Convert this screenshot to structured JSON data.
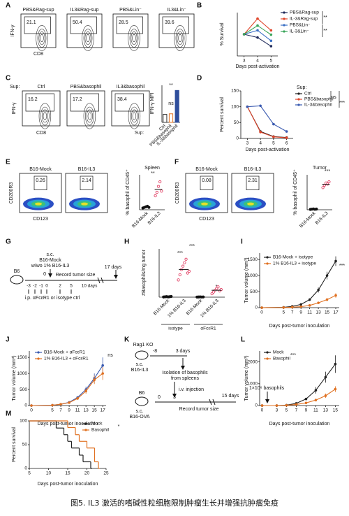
{
  "panel_letters": [
    "A",
    "B",
    "C",
    "D",
    "E",
    "F",
    "G",
    "H",
    "I",
    "J",
    "K",
    "L",
    "M"
  ],
  "flow_panels": [
    {
      "y_label": "IFN-γ",
      "x_label": "CD8",
      "plots": [
        {
          "title": "PBS&Rag-sup",
          "gate": 21.1
        },
        {
          "title": "IL3&Rag-sup",
          "gate": 50.4
        },
        {
          "title": "PBS&Lin⁻",
          "gate": 28.5
        },
        {
          "title": "IL3&Lin⁻",
          "gate": 39.6
        }
      ]
    },
    {
      "label": "Sup:",
      "y_label": "IFN-γ",
      "x_label": "CD8",
      "plots": [
        {
          "title": "Ctrl",
          "gate": 16.2
        },
        {
          "title": "PBS&basophil",
          "gate": 17.2
        },
        {
          "title": "IL3&basophil",
          "gate": 38.4
        }
      ]
    },
    {
      "y_label": "CD200R3",
      "x_label": "CD123",
      "plots": [
        {
          "title": "B16-Mock",
          "gate": 0.26
        },
        {
          "title": "B16-IL3",
          "gate": 2.14
        }
      ]
    },
    {
      "y_label": "CD200R3",
      "x_label": "CD123",
      "plots": [
        {
          "title": "B16-Mock",
          "gate": 0.08
        },
        {
          "title": "B16-IL3",
          "gate": 2.31
        }
      ]
    }
  ],
  "chart_data": [
    {
      "type": "line",
      "ylabel": "% Survival",
      "xlabel": "Days post-activation",
      "x": [
        3,
        4,
        5
      ],
      "xlim": [
        2.5,
        5.5
      ],
      "xticks": [
        3,
        4,
        5
      ],
      "ylim": [
        0,
        200
      ],
      "series": [
        {
          "name": "PBS&Rag-sup",
          "color": "#1f2a5a",
          "values": [
            100,
            85,
            45
          ]
        },
        {
          "name": "IL-3&Rag-sup",
          "color": "#e0452b",
          "values": [
            100,
            172,
            118
          ]
        },
        {
          "name": "PBS&Lin⁻",
          "color": "#3a6fc4",
          "values": [
            100,
            118,
            70
          ]
        },
        {
          "name": "IL-3&Lin⁻",
          "color": "#3aa55a",
          "values": [
            100,
            140,
            98
          ]
        }
      ],
      "annotations": [
        "**",
        "**"
      ]
    },
    {
      "type": "bar",
      "ylabel": "IFN-γ MFI",
      "category_title": "Sup:",
      "categories": [
        "Ctrl",
        "PBS&basophil",
        "IL-3&basophil"
      ],
      "values": [
        1.4,
        1.5,
        5.6
      ],
      "colors": [
        "#333333",
        "#e07020",
        "#2f4e9c"
      ],
      "ylim": [
        0,
        6.5
      ],
      "annotations": [
        "ns",
        "**"
      ]
    },
    {
      "type": "line",
      "ylabel": "Percent survival",
      "xlabel": "Days post-activation",
      "legend_title": "Sup:",
      "x": [
        3,
        4,
        5,
        6
      ],
      "xlim": [
        2.5,
        6.5
      ],
      "xticks": [
        3,
        4,
        5,
        6
      ],
      "ylim": [
        0,
        150
      ],
      "yticks": [
        0,
        50,
        100,
        150
      ],
      "series": [
        {
          "name": "Ctrl",
          "color": "#222222",
          "values": [
            100,
            22,
            6,
            3
          ]
        },
        {
          "name": "PBS&basophil",
          "color": "#e0452b",
          "values": [
            100,
            20,
            5,
            2
          ]
        },
        {
          "name": "IL-3&basophil",
          "color": "#3a5ab0",
          "values": [
            100,
            103,
            45,
            22
          ]
        }
      ],
      "annotations": [
        "ns",
        "***"
      ]
    },
    {
      "type": "dot",
      "title": "Spleen",
      "ylabel": "% basophil of CD45⁺",
      "categories": [
        "B16-Mock",
        "B16-IL3"
      ],
      "values": [
        [
          0.15,
          0.2,
          0.25,
          0.3,
          0.2
        ],
        [
          1.2,
          1.5,
          2.0,
          2.4,
          1.6
        ]
      ],
      "means": [
        0.22,
        1.74
      ],
      "colors": [
        "#111111",
        "#e0335a"
      ],
      "ylim": [
        0,
        3
      ],
      "annotations": [
        "**"
      ]
    },
    {
      "type": "dot",
      "title": "Tumor",
      "ylabel": "% basophil of CD45⁺",
      "categories": [
        "B16-Mock",
        "B16-IL3"
      ],
      "values": [
        [
          0.03,
          0.05,
          0.07,
          0.04,
          0.06
        ],
        [
          1.9,
          2.1,
          2.3,
          2.2,
          2.4
        ]
      ],
      "means": [
        0.05,
        2.18
      ],
      "colors": [
        "#111111",
        "#e0335a"
      ],
      "ylim": [
        0,
        3
      ],
      "annotations": [
        "***"
      ]
    },
    {
      "type": "dot",
      "ylabel": "#Basophils/mg tumor",
      "categories": [
        "B16-Mock",
        "1% B16-IL3",
        "B16-Mock",
        "1% B16-IL3"
      ],
      "groups": [
        "isotype",
        "αFcεR1"
      ],
      "values": [
        [
          5,
          10,
          15,
          8,
          12,
          20
        ],
        [
          500,
          650,
          800,
          900,
          1000,
          1100,
          700,
          750
        ],
        [
          3,
          5,
          8,
          4,
          6
        ],
        [
          100,
          150,
          200,
          250,
          300,
          180,
          220
        ]
      ],
      "means": [
        12,
        800,
        5,
        200
      ],
      "colors": [
        "#111111",
        "#e0335a",
        "#111111",
        "#e0335a"
      ],
      "ylim": [
        0,
        1400
      ],
      "annotations": [
        "***",
        "***",
        "*"
      ]
    },
    {
      "type": "line",
      "ylabel": "Tumor volume (mm³)",
      "xlabel": "Days post-tumor inoculation",
      "x": [
        0,
        5,
        7,
        9,
        11,
        13,
        15,
        17
      ],
      "xlim": [
        -0.5,
        17.8
      ],
      "xticks": [
        0,
        5,
        7,
        9,
        11,
        13,
        15,
        17
      ],
      "ylim": [
        0,
        1700
      ],
      "yticks": [
        0,
        500,
        1000,
        1500
      ],
      "series": [
        {
          "name": "B16-Mock + isotype",
          "color": "#222222",
          "values": [
            0,
            10,
            40,
            100,
            250,
            550,
            1000,
            1450
          ],
          "errors": [
            0,
            5,
            10,
            20,
            40,
            80,
            120,
            150
          ]
        },
        {
          "name": "1% B16-IL3 + isotype",
          "color": "#e07020",
          "values": [
            0,
            5,
            15,
            30,
            70,
            150,
            250,
            380
          ],
          "errors": [
            0,
            3,
            5,
            8,
            15,
            30,
            50,
            70
          ]
        }
      ],
      "annotations": [
        "***"
      ]
    },
    {
      "type": "line",
      "ylabel": "Tumor volume (mm³)",
      "xlabel": "Days post-tumor inoculation",
      "x": [
        0,
        5,
        7,
        9,
        11,
        13,
        15,
        17
      ],
      "xlim": [
        -0.5,
        17.8
      ],
      "xticks": [
        0,
        5,
        7,
        9,
        11,
        13,
        15,
        17
      ],
      "ylim": [
        0,
        1700
      ],
      "yticks": [
        0,
        500,
        1000,
        1500
      ],
      "series": [
        {
          "name": "B16-Mock + αFcεR1",
          "color": "#3a5ab0",
          "values": [
            0,
            10,
            40,
            100,
            250,
            500,
            850,
            1250
          ],
          "errors": [
            0,
            5,
            10,
            20,
            40,
            90,
            150,
            250
          ]
        },
        {
          "name": "1% B16-IL3 + αFcεR1",
          "color": "#e07020",
          "values": [
            0,
            10,
            40,
            90,
            220,
            450,
            800,
            1000
          ],
          "errors": [
            0,
            5,
            10,
            20,
            40,
            80,
            130,
            200
          ]
        }
      ],
      "annotations": [
        "ns"
      ]
    },
    {
      "type": "line",
      "ylabel": "Tumor volume (mm³)",
      "xlabel": "Days post-tumor inoculation",
      "x": [
        0,
        3,
        5,
        7,
        9,
        11,
        13,
        15
      ],
      "xlim": [
        -0.5,
        15.8
      ],
      "xticks": [
        0,
        3,
        5,
        7,
        9,
        11,
        13,
        15
      ],
      "ylim": [
        0,
        2500
      ],
      "yticks": [
        0,
        1000,
        2000
      ],
      "series": [
        {
          "name": "Mock",
          "color": "#222222",
          "values": [
            0,
            0,
            20,
            100,
            300,
            700,
            1300,
            1900
          ],
          "errors": [
            0,
            0,
            10,
            30,
            60,
            150,
            250,
            400
          ]
        },
        {
          "name": "Basophil",
          "color": "#e07020",
          "values": [
            0,
            0,
            10,
            50,
            120,
            250,
            450,
            750
          ],
          "errors": [
            0,
            0,
            5,
            15,
            30,
            60,
            100,
            130
          ]
        }
      ],
      "annotations": [
        "***",
        "1×10⁶ basophils"
      ]
    },
    {
      "type": "step",
      "ylabel": "Percent survival",
      "xlabel": "Days post-tumor inoculation",
      "xlim": [
        5,
        25
      ],
      "xticks": [
        5,
        10,
        15,
        20,
        25
      ],
      "ylim": [
        0,
        100
      ],
      "yticks": [
        0,
        50,
        100
      ],
      "series": [
        {
          "name": "Mock",
          "color": "#222222",
          "x": [
            5,
            12,
            14,
            15,
            16,
            18,
            19,
            21
          ],
          "values": [
            100,
            85,
            71,
            57,
            43,
            28,
            14,
            0
          ]
        },
        {
          "name": "Basophil",
          "color": "#e07020",
          "x": [
            5,
            15,
            17,
            18,
            20,
            22,
            23
          ],
          "values": [
            100,
            86,
            71,
            57,
            43,
            14,
            0
          ]
        }
      ],
      "annotations": [
        "*"
      ]
    }
  ],
  "schematics": {
    "G": {
      "injection": [
        "s.c.",
        "B16-Mock",
        "w/wo 1% B16-IL3"
      ],
      "zero": "0",
      "strain": "B6",
      "record": "Record tumor size",
      "end": "17 days",
      "timeline": [
        "-3",
        "-2",
        "-1",
        "0",
        "2",
        "5",
        "10 days"
      ],
      "treatment": "i.p. αFcεR1 or isotype ctrl"
    },
    "K": {
      "donor": "Rag1 KO",
      "start": "-8",
      "mid": "3 days",
      "inject": [
        "s.c.",
        "B16-IL3"
      ],
      "isolate": [
        "Isolation of basophils",
        "from spleens"
      ],
      "iv": "i.v. injection",
      "host": "B6",
      "timeline": [
        "0",
        "3",
        "15 days"
      ],
      "record": "Record tumor size",
      "inject2": [
        "s.c.",
        "B16-OVA"
      ]
    }
  },
  "caption": "图5. IL3 激活的嗜碱性粒细胞限制肿瘤生长并增强抗肿瘤免疫"
}
